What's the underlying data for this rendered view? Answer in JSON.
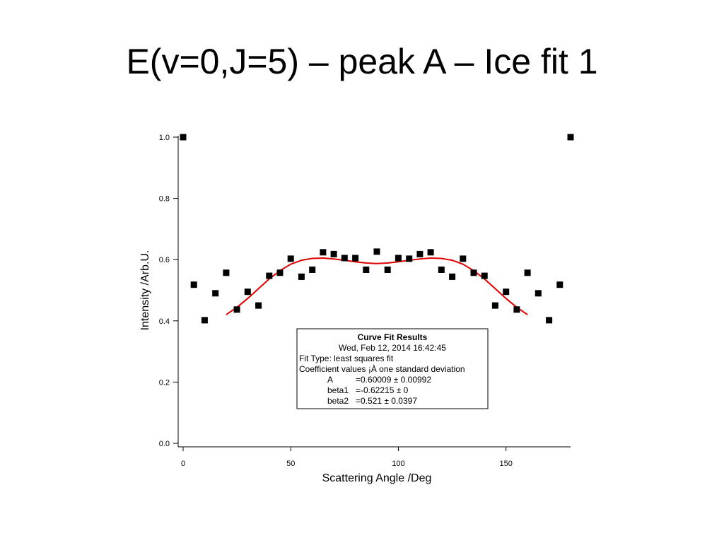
{
  "slide": {
    "title": "E(v=0,J=5) – peak A – Ice fit 1"
  },
  "chart_data": {
    "type": "scatter",
    "xlabel": "Scattering Angle /Deg",
    "ylabel": "Intensity /Arb.U.",
    "xlim": [
      0,
      180
    ],
    "ylim": [
      0,
      1.0
    ],
    "xticks": [
      0,
      50,
      100,
      150
    ],
    "yticks": [
      0.0,
      0.2,
      0.4,
      0.6,
      0.8,
      1.0
    ],
    "ytick_labels": [
      "0.0",
      "0.2",
      "0.4",
      "0.6",
      "0.8",
      "1.0"
    ],
    "grid": false,
    "colors": {
      "points": "#000000",
      "fit": "#e00000"
    },
    "series": [
      {
        "type": "scatter",
        "marker": "square",
        "x": [
          0,
          5,
          10,
          15,
          20,
          25,
          30,
          35,
          40,
          45,
          50,
          55,
          60,
          65,
          70,
          75,
          80,
          85,
          90,
          95,
          100,
          105,
          110,
          115,
          120,
          125,
          130,
          135,
          140,
          145,
          150,
          155,
          160,
          165,
          170,
          175,
          180
        ],
        "y": [
          1.0,
          0.518,
          0.402,
          0.49,
          0.557,
          0.437,
          0.495,
          0.45,
          0.547,
          0.557,
          0.603,
          0.544,
          0.567,
          0.624,
          0.618,
          0.605,
          0.605,
          0.567,
          0.626,
          0.567,
          0.605,
          0.603,
          0.618,
          0.624,
          0.567,
          0.544,
          0.603,
          0.557,
          0.547,
          0.45,
          0.495,
          0.437,
          0.557,
          0.49,
          0.402,
          0.518,
          1.0
        ]
      },
      {
        "type": "line",
        "x": [
          20,
          25,
          30,
          35,
          40,
          45,
          50,
          55,
          60,
          65,
          70,
          75,
          80,
          85,
          90,
          95,
          100,
          105,
          110,
          115,
          120,
          125,
          130,
          135,
          140,
          145,
          150,
          155,
          160
        ],
        "y": [
          0.42,
          0.444,
          0.473,
          0.505,
          0.537,
          0.564,
          0.585,
          0.598,
          0.604,
          0.605,
          0.602,
          0.598,
          0.593,
          0.589,
          0.587,
          0.589,
          0.593,
          0.598,
          0.602,
          0.605,
          0.604,
          0.598,
          0.585,
          0.564,
          0.537,
          0.505,
          0.473,
          0.444,
          0.42
        ]
      }
    ],
    "annotation": {
      "title": "Curve Fit Results",
      "date": "Wed, Feb 12, 2014 16:42:45",
      "fit_type": "Fit Type: least squares fit",
      "coef_header": "Coefficient values ¡À one standard deviation",
      "coefficients": [
        {
          "name": "A",
          "value": "=0.60009 ± 0.00992"
        },
        {
          "name": "beta1",
          "value": "=-0.62215 ± 0"
        },
        {
          "name": "beta2",
          "value": "=0.521 ± 0.0397"
        }
      ]
    }
  }
}
